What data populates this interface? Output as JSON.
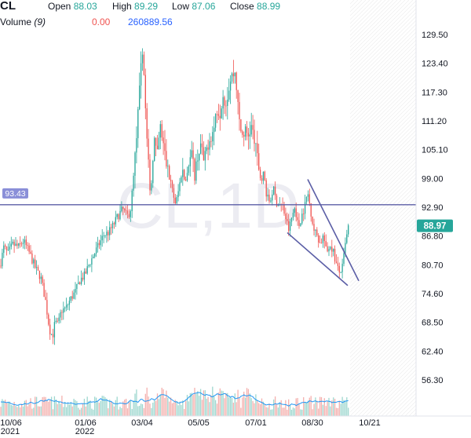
{
  "header": {
    "symbol": "CL",
    "open_label": "Open",
    "open": "88.03",
    "high_label": "High",
    "high": "89.29",
    "low_label": "Low",
    "low": "87.06",
    "close_label": "Close",
    "close": "88.99",
    "volume_label": "Volume",
    "volume_period": "(9)",
    "volume_value": "0.00",
    "volume_ma": "260889.56"
  },
  "chart_data": {
    "type": "candlestick",
    "watermark": "CL,1D",
    "y_ticks": [
      "129.50",
      "123.40",
      "117.30",
      "111.20",
      "105.10",
      "99.00",
      "92.90",
      "86.80",
      "80.70",
      "74.60",
      "68.50",
      "62.40",
      "56.30"
    ],
    "x_ticks": [
      {
        "label": "10/06",
        "sub": "2021"
      },
      {
        "label": "01/06",
        "sub": "2022"
      },
      {
        "label": "03/04",
        "sub": ""
      },
      {
        "label": "05/05",
        "sub": ""
      },
      {
        "label": "07/01",
        "sub": ""
      },
      {
        "label": "08/30",
        "sub": ""
      },
      {
        "label": "10/21",
        "sub": ""
      }
    ],
    "horizontal_line": {
      "value": 93.43,
      "label": "93.43"
    },
    "last_price": {
      "value": 88.97,
      "label": "88.97"
    },
    "price_path": [
      [
        0,
        80.5
      ],
      [
        5,
        84.5
      ],
      [
        10,
        83
      ],
      [
        16,
        85
      ],
      [
        24,
        84.5
      ],
      [
        30,
        85.8
      ],
      [
        38,
        83
      ],
      [
        45,
        80
      ],
      [
        52,
        78
      ],
      [
        58,
        73
      ],
      [
        63,
        67
      ],
      [
        67,
        65.5
      ],
      [
        70,
        68.5
      ],
      [
        74,
        68
      ],
      [
        78,
        71
      ],
      [
        84,
        71.5
      ],
      [
        90,
        73.5
      ],
      [
        96,
        75
      ],
      [
        102,
        77.5
      ],
      [
        108,
        78.5
      ],
      [
        114,
        81
      ],
      [
        120,
        83
      ],
      [
        126,
        85
      ],
      [
        132,
        87
      ],
      [
        138,
        87.5
      ],
      [
        144,
        89
      ],
      [
        150,
        91
      ],
      [
        156,
        92.5
      ],
      [
        162,
        91
      ],
      [
        166,
        92
      ],
      [
        170,
        99
      ],
      [
        174,
        108
      ],
      [
        178,
        118
      ],
      [
        182,
        128
      ],
      [
        184,
        118
      ],
      [
        188,
        104
      ],
      [
        192,
        95
      ],
      [
        196,
        108
      ],
      [
        200,
        103
      ],
      [
        204,
        110
      ],
      [
        208,
        106
      ],
      [
        212,
        102
      ],
      [
        216,
        99
      ],
      [
        220,
        96
      ],
      [
        224,
        93.5
      ],
      [
        228,
        97
      ],
      [
        232,
        101
      ],
      [
        236,
        98
      ],
      [
        240,
        102
      ],
      [
        244,
        104
      ],
      [
        248,
        100
      ],
      [
        252,
        104
      ],
      [
        256,
        106
      ],
      [
        260,
        102
      ],
      [
        264,
        106
      ],
      [
        268,
        108
      ],
      [
        272,
        109
      ],
      [
        276,
        114
      ],
      [
        280,
        113
      ],
      [
        284,
        117
      ],
      [
        288,
        115
      ],
      [
        292,
        119
      ],
      [
        296,
        121
      ],
      [
        300,
        121.5
      ],
      [
        304,
        112
      ],
      [
        308,
        108
      ],
      [
        312,
        109
      ],
      [
        316,
        108
      ],
      [
        320,
        110
      ],
      [
        324,
        107
      ],
      [
        328,
        103
      ],
      [
        332,
        99
      ],
      [
        336,
        100
      ],
      [
        340,
        95
      ],
      [
        344,
        94
      ],
      [
        348,
        97
      ],
      [
        352,
        94
      ],
      [
        356,
        93.5
      ],
      [
        360,
        93
      ],
      [
        364,
        90.5
      ],
      [
        368,
        88
      ],
      [
        372,
        91
      ],
      [
        376,
        93
      ],
      [
        380,
        88.5
      ],
      [
        384,
        91
      ],
      [
        388,
        93
      ],
      [
        392,
        96
      ],
      [
        396,
        92
      ],
      [
        400,
        88
      ],
      [
        404,
        87
      ],
      [
        408,
        85
      ],
      [
        412,
        87
      ],
      [
        416,
        83
      ],
      [
        420,
        85
      ],
      [
        424,
        84
      ],
      [
        428,
        81
      ],
      [
        432,
        79
      ],
      [
        436,
        80
      ],
      [
        440,
        85
      ],
      [
        444,
        88.97
      ]
    ],
    "channel_lines": [
      {
        "from": [
          366,
          87.5
        ],
        "to": [
          443,
          76.3
        ]
      },
      {
        "from": [
          392,
          98.8
        ],
        "to": [
          457,
          77.3
        ]
      }
    ],
    "y_axis_range": [
      52.0,
      132.0
    ],
    "grid": false
  },
  "colors": {
    "up": "#26a69a",
    "down": "#ef5350",
    "line": "#5b5ea6",
    "label_bg": "#8a8fd8",
    "last_price_bg": "#26a69a",
    "volume_up": "#9ed7cf",
    "volume_down": "#f4b0ae",
    "volume_ma": "#2196f3",
    "watermark": "#ececf2"
  }
}
